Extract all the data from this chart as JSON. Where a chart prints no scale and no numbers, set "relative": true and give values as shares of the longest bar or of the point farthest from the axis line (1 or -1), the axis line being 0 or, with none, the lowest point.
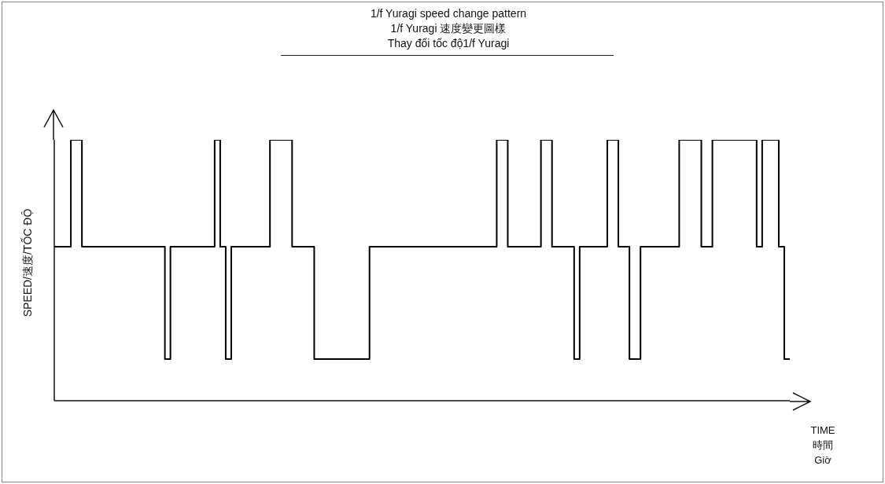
{
  "chart_data": {
    "type": "step",
    "title": "1/f Yuragi speed change pattern\n1/f Yuragi 速度變更圖樣\nThay đổi tốc độ1/f Yuragi",
    "xlabel": "TIME\n時間\nGiờ",
    "ylabel": "SPEED/速度/TỐC ĐỘ",
    "relative": true,
    "marker": "none",
    "categories": [
      null,
      null,
      null,
      null,
      null,
      null,
      null,
      null,
      null,
      null,
      null,
      null,
      null,
      null,
      null,
      null,
      null,
      null,
      null,
      null,
      null,
      null,
      null,
      null,
      null,
      null,
      null,
      null,
      null,
      null,
      null,
      null,
      null,
      null,
      null,
      null,
      null,
      null,
      null,
      null,
      null,
      null,
      null,
      null,
      null,
      null,
      null,
      null,
      null,
      null,
      null,
      null,
      null,
      null,
      null,
      null,
      null,
      null,
      null,
      null,
      null,
      null,
      null,
      null,
      null,
      null,
      null,
      null,
      null,
      null,
      null,
      null,
      null,
      null,
      null,
      null,
      null,
      null,
      null,
      null,
      null,
      null,
      null,
      null,
      null,
      null,
      null,
      null,
      null,
      null,
      null,
      null,
      null,
      null,
      null,
      null,
      null,
      null,
      null,
      null,
      null,
      null,
      null,
      null,
      null,
      null,
      null,
      null,
      null,
      null,
      null,
      null,
      null,
      null,
      null,
      null,
      null,
      null,
      null,
      null,
      null,
      null,
      null,
      null,
      null,
      null,
      null,
      null,
      null,
      null,
      null,
      null,
      null,
      null
    ],
    "series": [
      {
        "color": "#000000",
        "values": [
          0.59,
          0.59,
          0.59,
          1,
          1,
          0.59,
          0.59,
          0.59,
          0.59,
          0.59,
          0.59,
          0.59,
          0.59,
          0.59,
          0.59,
          0.59,
          0.59,
          0.59,
          0.59,
          0.59,
          0.16,
          0.59,
          0.59,
          0.59,
          0.59,
          0.59,
          0.59,
          0.59,
          0.59,
          1,
          0.59,
          0.16,
          0.59,
          0.59,
          0.59,
          0.59,
          0.59,
          0.59,
          0.59,
          1,
          1,
          1,
          1,
          0.59,
          0.59,
          0.59,
          0.59,
          0.16,
          0.16,
          0.16,
          0.16,
          0.16,
          0.16,
          0.16,
          0.16,
          0.16,
          0.16,
          0.59,
          0.59,
          0.59,
          0.59,
          0.59,
          0.59,
          0.59,
          0.59,
          0.59,
          0.59,
          0.59,
          0.59,
          0.59,
          0.59,
          0.59,
          0.59,
          0.59,
          0.59,
          0.59,
          0.59,
          0.59,
          0.59,
          0.59,
          1,
          1,
          0.59,
          0.59,
          0.59,
          0.59,
          0.59,
          0.59,
          1,
          1,
          0.59,
          0.59,
          0.59,
          0.59,
          0.16,
          0.59,
          0.59,
          0.59,
          0.59,
          0.59,
          1,
          1,
          0.59,
          0.59,
          0.16,
          0.16,
          0.59,
          0.59,
          0.59,
          0.59,
          0.59,
          0.59,
          0.59,
          1,
          1,
          1,
          1,
          0.59,
          0.59,
          1,
          1,
          1,
          1,
          1,
          1,
          1,
          1,
          0.59,
          1,
          1,
          1,
          0.59,
          0.16,
          0.16
        ]
      }
    ]
  }
}
